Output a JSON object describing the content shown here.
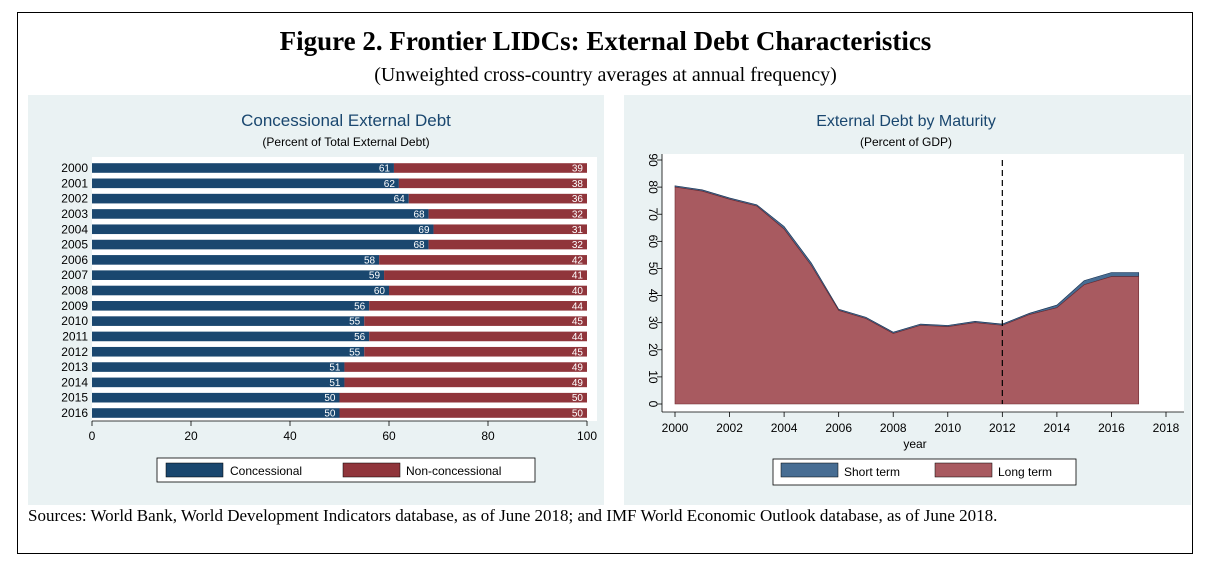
{
  "figure": {
    "title": "Figure 2. Frontier LIDCs: External Debt Characteristics",
    "subtitle": "(Unweighted cross-country averages at annual frequency)",
    "sources": "Sources: World Bank, World Development Indicators database, as of June 2018; and IMF World Economic Outlook database, as of June 2018."
  },
  "colors": {
    "panel_bg": "#eaf2f3",
    "navy": "#1a476f",
    "maroon": "#90353b",
    "area_fill": "#a85a60",
    "short_term": "#476d93"
  },
  "chart_data": [
    {
      "type": "bar",
      "orientation": "horizontal",
      "stacked": true,
      "title": "Concessional External Debt",
      "subtitle": "(Percent of Total External Debt)",
      "categories": [
        "2000",
        "2001",
        "2002",
        "2003",
        "2004",
        "2005",
        "2006",
        "2007",
        "2008",
        "2009",
        "2010",
        "2011",
        "2012",
        "2013",
        "2014",
        "2015",
        "2016"
      ],
      "series": [
        {
          "name": "Concessional",
          "color": "#1a476f",
          "values": [
            61,
            62,
            64,
            68,
            69,
            68,
            58,
            59,
            60,
            56,
            55,
            56,
            55,
            51,
            51,
            50,
            50
          ]
        },
        {
          "name": "Non-concessional",
          "color": "#90353b",
          "values": [
            39,
            38,
            36,
            32,
            31,
            32,
            42,
            41,
            40,
            44,
            45,
            44,
            45,
            49,
            49,
            50,
            50
          ]
        }
      ],
      "xlim": [
        0,
        100
      ],
      "xticks": [
        0,
        20,
        40,
        60,
        80,
        100
      ],
      "grid": false,
      "legend": "bottom"
    },
    {
      "type": "area",
      "stacked": true,
      "title": "External Debt by Maturity",
      "subtitle": "(Percent of GDP)",
      "xlabel": "year",
      "x": [
        2000,
        2001,
        2002,
        2003,
        2004,
        2005,
        2006,
        2007,
        2008,
        2009,
        2010,
        2011,
        2012,
        2013,
        2014,
        2015,
        2016,
        2017
      ],
      "series": [
        {
          "name": "Long term",
          "color": "#a85a60",
          "values": [
            80,
            78.5,
            75.5,
            73,
            64.5,
            51,
            34.5,
            31.5,
            26,
            29,
            28.5,
            30,
            29,
            33,
            35.5,
            44,
            47,
            47
          ]
        },
        {
          "name": "Short term",
          "color": "#476d93",
          "values": [
            0.5,
            0.5,
            0.5,
            0.5,
            1,
            1,
            0.5,
            0.5,
            0.5,
            0.5,
            0.5,
            0.5,
            0.5,
            0.5,
            1,
            1.5,
            1.5,
            1.5
          ]
        }
      ],
      "xlim": [
        2000,
        2018
      ],
      "xticks": [
        2000,
        2002,
        2004,
        2006,
        2008,
        2010,
        2012,
        2014,
        2016,
        2018
      ],
      "ylim": [
        0,
        90
      ],
      "yticks": [
        0,
        10,
        20,
        30,
        40,
        50,
        60,
        70,
        80,
        90
      ],
      "vline": 2012,
      "grid": false,
      "legend": "bottom"
    }
  ]
}
